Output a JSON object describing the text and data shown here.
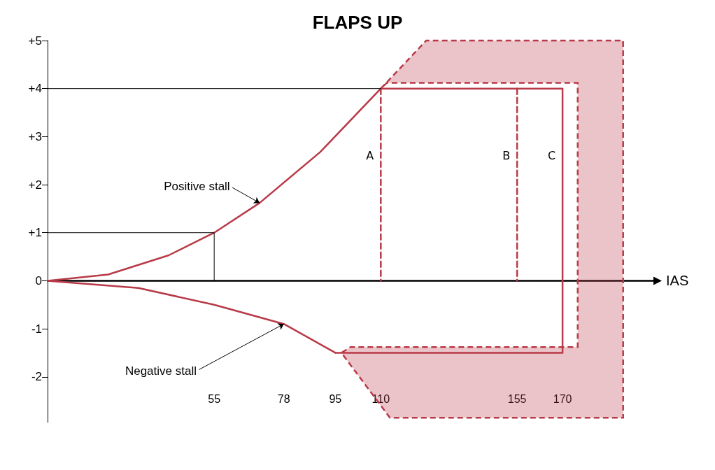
{
  "chart_data": {
    "type": "line",
    "title": "FLAPS UP",
    "xlabel": "IAS",
    "xlim": [
      0,
      200
    ],
    "xticks": [
      55,
      78,
      95,
      110,
      155,
      170
    ],
    "ylim": [
      -2.95,
      5
    ],
    "yticks": [
      {
        "value": 5,
        "label": "+5"
      },
      {
        "value": 4,
        "label": "+4"
      },
      {
        "value": 3,
        "label": "+3"
      },
      {
        "value": 2,
        "label": "+2"
      },
      {
        "value": 1,
        "label": "+1"
      },
      0,
      -1,
      -2
    ],
    "grid": false,
    "legend": false,
    "series": [
      {
        "type": "area",
        "color": "#b83a48",
        "line_style": "dashed",
        "x": [
          110,
          125,
          190,
          190,
          113,
          97,
          100,
          175,
          175,
          112,
          110
        ],
        "values": [
          4,
          5,
          5,
          -2.85,
          -2.85,
          -1.5,
          -1.38,
          -1.38,
          4.12,
          4.12,
          4
        ]
      },
      {
        "name": "Positive stall",
        "color": "#b83a48",
        "x": [
          0,
          20,
          40,
          55,
          70,
          90,
          110
        ],
        "values": [
          0,
          0.13,
          0.53,
          1,
          1.62,
          2.68,
          4
        ]
      },
      {
        "name": "Negative stall",
        "color": "#b83a48",
        "x": [
          0,
          30,
          55,
          78,
          95
        ],
        "values": [
          0,
          -0.15,
          -0.5,
          -0.9,
          -1.5
        ]
      },
      {
        "name": "C",
        "color": "#b83a48",
        "x": [
          110,
          170,
          170,
          95
        ],
        "values": [
          4,
          4,
          -1.5,
          -1.5
        ]
      },
      {
        "name": "A",
        "color": "#b83a48",
        "line_style": "dashed",
        "x": [
          110,
          110
        ],
        "values": [
          4,
          0
        ]
      },
      {
        "name": "B",
        "color": "#b83a48",
        "line_style": "dashed",
        "x": [
          155,
          155
        ],
        "values": [
          4,
          0
        ]
      },
      {
        "color": "#000000",
        "x": [
          0,
          110
        ],
        "values": [
          4,
          4
        ]
      },
      {
        "color": "#000000",
        "x": [
          0,
          55,
          55
        ],
        "values": [
          1,
          1,
          0
        ]
      }
    ]
  }
}
